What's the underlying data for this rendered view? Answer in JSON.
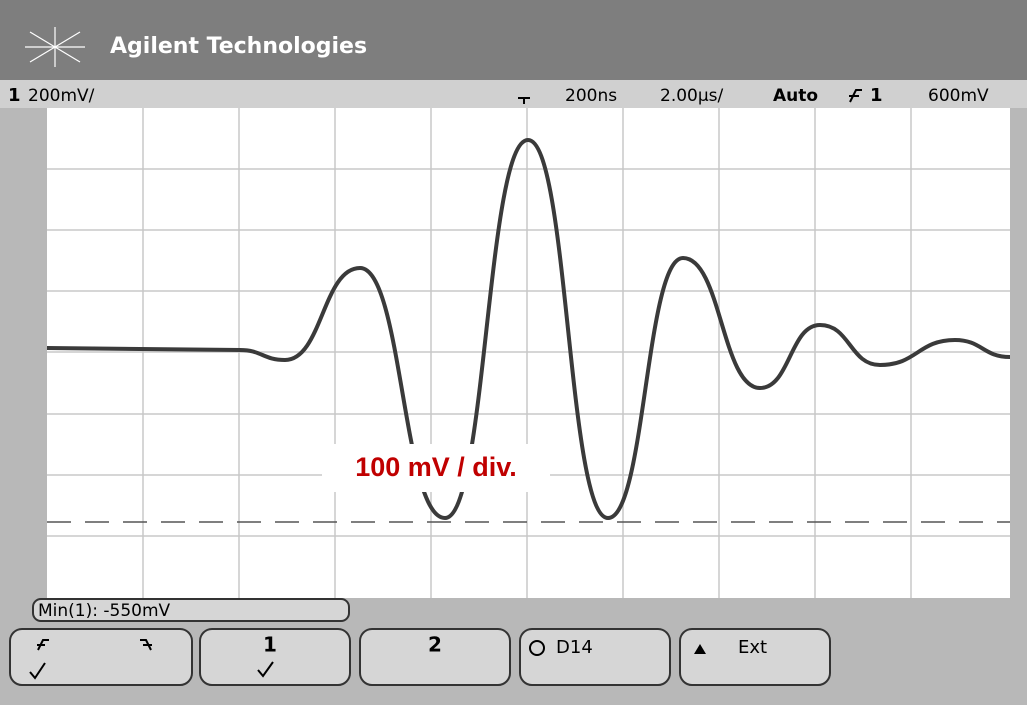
{
  "header": {
    "title": "Agilent Technologies"
  },
  "status": {
    "channel": "1",
    "scale": "200mV/",
    "delay": "200ns",
    "timebase": "2.00µs/",
    "mode": "Auto",
    "trigger_source": "1",
    "trigger_level": "600mV"
  },
  "annotation": "100 mV / div.",
  "measurement": "Min(1): -550mV",
  "softkeys": [
    "1",
    "2",
    "D14",
    "Ext"
  ]
}
